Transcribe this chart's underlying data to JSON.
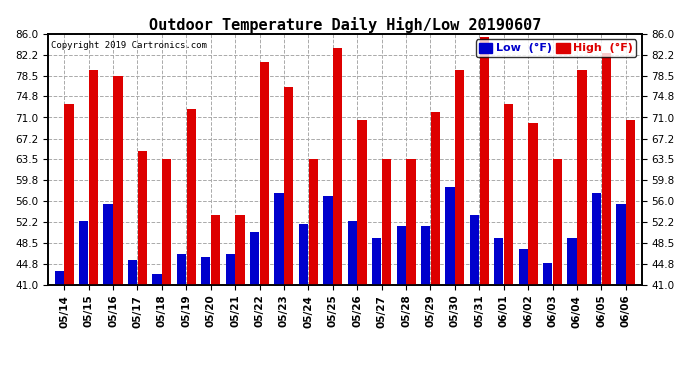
{
  "title": "Outdoor Temperature Daily High/Low 20190607",
  "copyright": "Copyright 2019 Cartronics.com",
  "legend_low": "Low  (°F)",
  "legend_high": "High  (°F)",
  "dates": [
    "05/14",
    "05/15",
    "05/16",
    "05/17",
    "05/18",
    "05/19",
    "05/20",
    "05/21",
    "05/22",
    "05/23",
    "05/24",
    "05/25",
    "05/26",
    "05/27",
    "05/28",
    "05/29",
    "05/30",
    "05/31",
    "06/01",
    "06/02",
    "06/03",
    "06/04",
    "06/05",
    "06/06"
  ],
  "highs": [
    73.5,
    79.5,
    78.5,
    65.0,
    63.5,
    72.5,
    53.5,
    53.5,
    81.0,
    76.5,
    63.5,
    83.5,
    70.5,
    63.5,
    63.5,
    72.0,
    79.5,
    85.5,
    73.5,
    70.0,
    63.5,
    79.5,
    82.5,
    70.5
  ],
  "lows": [
    43.5,
    52.5,
    55.5,
    45.5,
    43.0,
    46.5,
    46.0,
    46.5,
    50.5,
    57.5,
    52.0,
    57.0,
    52.5,
    49.5,
    51.5,
    51.5,
    58.5,
    53.5,
    49.5,
    47.5,
    45.0,
    49.5,
    57.5,
    55.5
  ],
  "ylim": [
    41.0,
    86.0
  ],
  "yticks": [
    41.0,
    44.8,
    48.5,
    52.2,
    56.0,
    59.8,
    63.5,
    67.2,
    71.0,
    74.8,
    78.5,
    82.2,
    86.0
  ],
  "high_color": "#dd0000",
  "low_color": "#0000cc",
  "bg_color": "#ffffff",
  "grid_color": "#aaaaaa",
  "title_fontsize": 11,
  "bar_width": 0.38,
  "bar_gap": 0.02
}
